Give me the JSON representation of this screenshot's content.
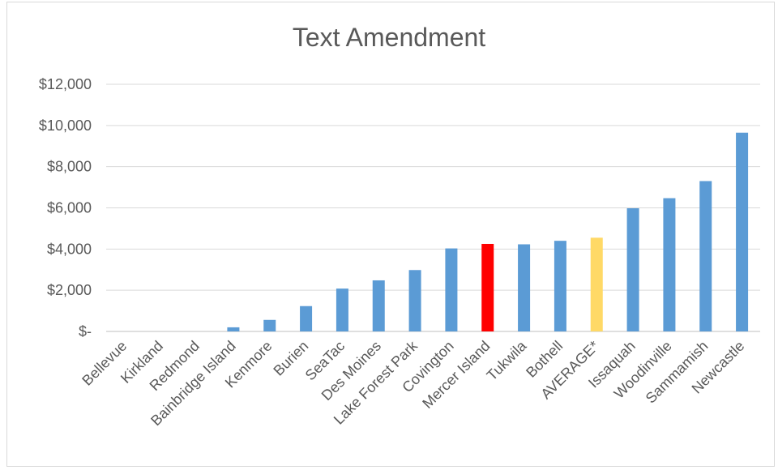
{
  "chart_data": {
    "type": "bar",
    "title": "Text Amendment",
    "xlabel": "",
    "ylabel": "",
    "ylim": [
      0,
      12000
    ],
    "yticks": [
      0,
      2000,
      4000,
      6000,
      8000,
      10000,
      12000
    ],
    "ytick_labels": [
      "$-",
      "$2,000",
      "$4,000",
      "$6,000",
      "$8,000",
      "$10,000",
      "$12,000"
    ],
    "grid": true,
    "legend": "none",
    "categories": [
      "Bellevue",
      "Kirkland",
      "Redmond",
      "Bainbridge Island",
      "Kenmore",
      "Burien",
      "SeaTac",
      "Des Moines",
      "Lake Forest Park",
      "Covington",
      "Mercer Island",
      "Tukwila",
      "Bothell",
      "AVERAGE*",
      "Issaquah",
      "Woodinville",
      "Sammamish",
      "Newcastle"
    ],
    "values": [
      0,
      0,
      0,
      200,
      560,
      1230,
      2080,
      2480,
      2980,
      4030,
      4250,
      4230,
      4400,
      4550,
      5980,
      6470,
      7300,
      9650
    ],
    "colors": {
      "default": "#5b9bd5",
      "Mercer Island": "#ff0000",
      "AVERAGE*": "#ffd966"
    }
  }
}
